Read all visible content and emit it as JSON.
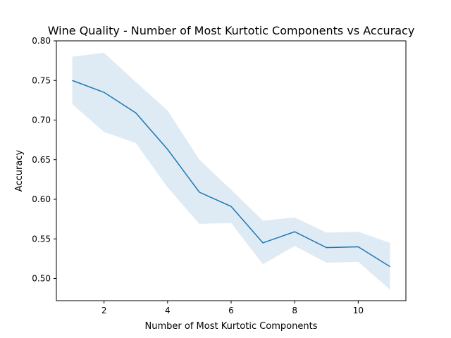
{
  "chart_data": {
    "type": "line",
    "title": "Wine Quality - Number of Most Kurtotic Components vs Accuracy",
    "xlabel": "Number of Most Kurtotic Components",
    "ylabel": "Accuracy",
    "xlim": [
      0.5,
      11.5
    ],
    "ylim": [
      0.472,
      0.8
    ],
    "xticks": [
      2,
      4,
      6,
      8,
      10
    ],
    "yticks": [
      0.5,
      0.55,
      0.6,
      0.65,
      0.7,
      0.75,
      0.8
    ],
    "yticks_labels": [
      "0.50",
      "0.55",
      "0.60",
      "0.65",
      "0.70",
      "0.75",
      "0.80"
    ],
    "grid": false,
    "x": [
      1,
      2,
      3,
      4,
      5,
      6,
      7,
      8,
      9,
      10,
      11
    ],
    "series": [
      {
        "values": [
          0.75,
          0.735,
          0.709,
          0.663,
          0.609,
          0.591,
          0.545,
          0.559,
          0.539,
          0.54,
          0.515
        ],
        "band_upper": [
          0.78,
          0.785,
          0.748,
          0.712,
          0.65,
          0.612,
          0.573,
          0.577,
          0.558,
          0.559,
          0.545
        ],
        "band_lower": [
          0.72,
          0.685,
          0.671,
          0.615,
          0.569,
          0.57,
          0.518,
          0.541,
          0.52,
          0.521,
          0.486
        ],
        "color": "#1f77b4",
        "band_color": "#1f77b4"
      }
    ]
  }
}
